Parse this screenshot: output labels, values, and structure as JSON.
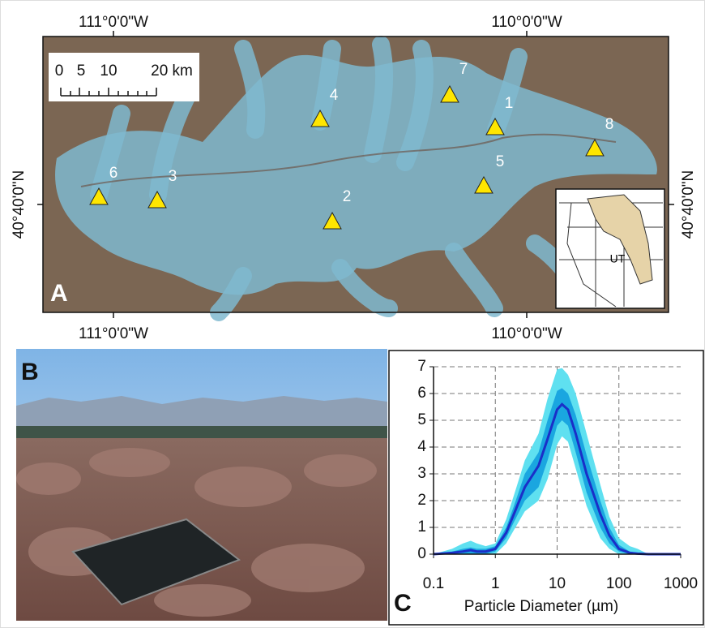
{
  "map": {
    "letter": "A",
    "lon_labels": [
      "111°0'0\"W",
      "110°0'0\"W"
    ],
    "lat_label": "40°40'0\"N",
    "scale_bar": [
      "0",
      "5",
      "10",
      "20 km"
    ],
    "sites": [
      "1",
      "2",
      "3",
      "4",
      "5",
      "6",
      "7",
      "8"
    ],
    "inset_label": "UT"
  },
  "photo": {
    "letter": "B"
  },
  "chart_data": {
    "type": "line",
    "letter": "C",
    "xlabel": "Particle Diameter (µm)",
    "xscale": "log",
    "x": [
      0.1,
      0.2,
      0.3,
      0.4,
      0.5,
      0.7,
      1,
      1.5,
      2,
      3,
      5,
      7,
      10,
      12,
      15,
      20,
      30,
      50,
      70,
      100,
      150,
      200,
      300,
      500,
      1000
    ],
    "xlim": [
      0.1,
      1000
    ],
    "xticks": [
      0.1,
      1,
      10,
      100,
      1000
    ],
    "ylim": [
      0,
      7
    ],
    "yticks": [
      0,
      1,
      2,
      3,
      4,
      5,
      6,
      7
    ],
    "grid": true,
    "bands": [
      {
        "color": "#5fe0f0",
        "lower": [
          0,
          0,
          0,
          0,
          0,
          0,
          0,
          0.4,
          0.9,
          1.6,
          2.0,
          2.8,
          4.1,
          4.4,
          4.2,
          3.2,
          1.8,
          0.6,
          0.2,
          0,
          0,
          0,
          0,
          0,
          0
        ],
        "upper": [
          0,
          0.2,
          0.4,
          0.5,
          0.4,
          0.3,
          0.4,
          1.3,
          2.2,
          3.5,
          4.5,
          5.8,
          6.9,
          6.95,
          6.7,
          6.0,
          4.5,
          2.6,
          1.4,
          0.6,
          0.3,
          0.2,
          0,
          0,
          0
        ]
      },
      {
        "color": "#1aa6e0",
        "lower": [
          0,
          0,
          0,
          0,
          0,
          0,
          0.1,
          0.6,
          1.2,
          2.0,
          2.5,
          3.5,
          4.8,
          5.0,
          4.8,
          3.8,
          2.3,
          1.0,
          0.4,
          0.1,
          0,
          0,
          0,
          0,
          0
        ],
        "upper": [
          0,
          0.1,
          0.2,
          0.25,
          0.2,
          0.2,
          0.3,
          1.0,
          1.8,
          3.0,
          3.8,
          5.0,
          6.1,
          6.2,
          6.0,
          5.2,
          3.7,
          2.0,
          1.0,
          0.35,
          0.1,
          0.05,
          0,
          0,
          0
        ]
      }
    ],
    "series": [
      {
        "color": "#1a2fc8",
        "values": [
          0,
          0.05,
          0.1,
          0.15,
          0.1,
          0.1,
          0.2,
          0.8,
          1.5,
          2.5,
          3.3,
          4.3,
          5.4,
          5.6,
          5.4,
          4.5,
          3.0,
          1.5,
          0.7,
          0.2,
          0.05,
          0.02,
          0,
          0,
          0
        ]
      }
    ]
  }
}
